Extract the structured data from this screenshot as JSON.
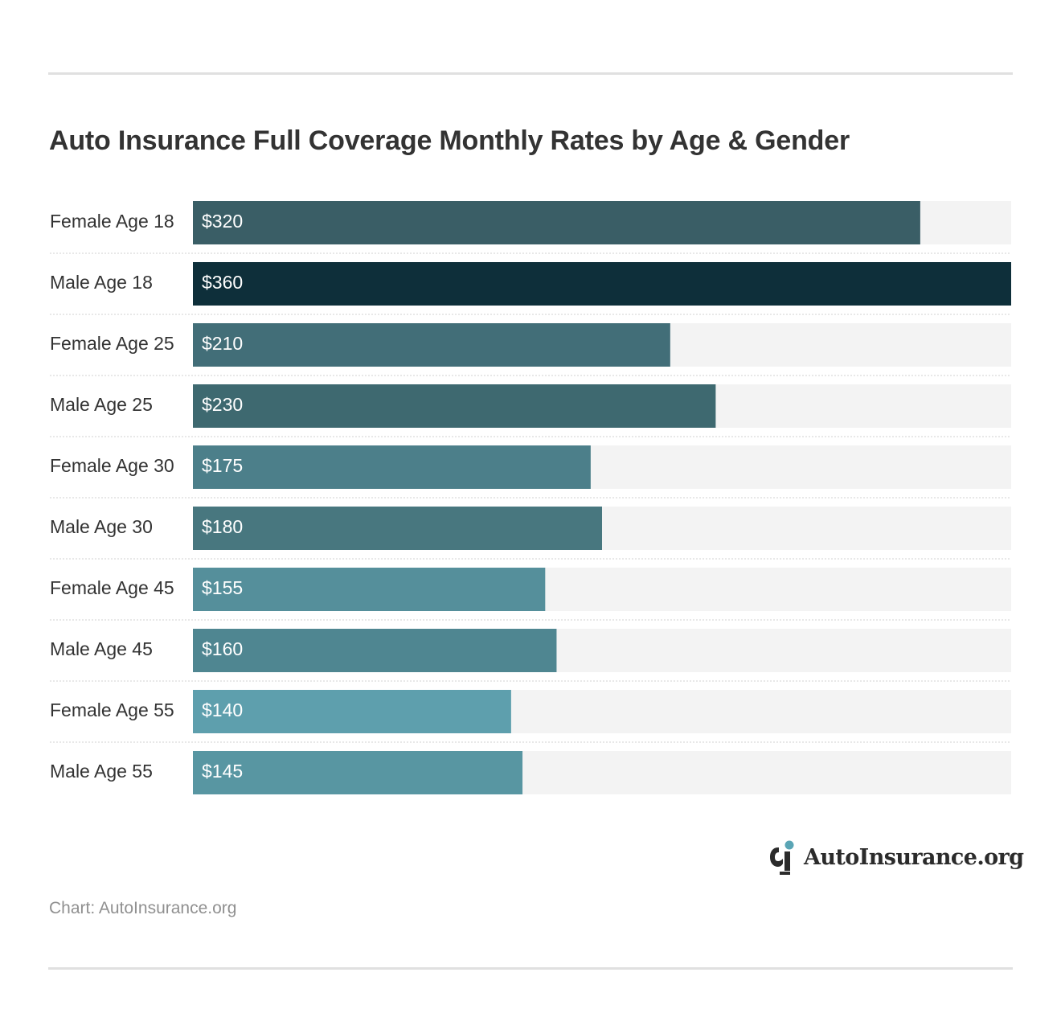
{
  "chart_data": {
    "type": "bar",
    "orientation": "horizontal",
    "title": "Auto Insurance Full Coverage Monthly Rates by Age & Gender",
    "categories": [
      "Female Age 18",
      "Male Age 18",
      "Female Age 25",
      "Male Age 25",
      "Female Age 30",
      "Male Age 30",
      "Female Age 45",
      "Male Age 45",
      "Female Age 55",
      "Male Age 55"
    ],
    "values": [
      320,
      360,
      210,
      230,
      175,
      180,
      155,
      160,
      140,
      145
    ],
    "value_labels": [
      "$320",
      "$360",
      "$210",
      "$230",
      "$175",
      "$180",
      "$155",
      "$160",
      "$140",
      "$145"
    ],
    "xlim": [
      0,
      360
    ],
    "grid": false,
    "legend": "none",
    "bar_colors": [
      "#3a5e66",
      "#0e2f3a",
      "#426e78",
      "#3e6970",
      "#4c7f8a",
      "#48777f",
      "#558f9b",
      "#4f8691",
      "#5e9fad",
      "#5896a2"
    ],
    "track_color": "#f3f3f3",
    "separator_color": "#d2d2d2"
  },
  "brand": {
    "logo_text": "AutoInsurance.org",
    "logo_icon": "autoinsurance-logo-icon",
    "accent": "#5aa5b5"
  },
  "footer": {
    "source": "Chart: AutoInsurance.org"
  }
}
